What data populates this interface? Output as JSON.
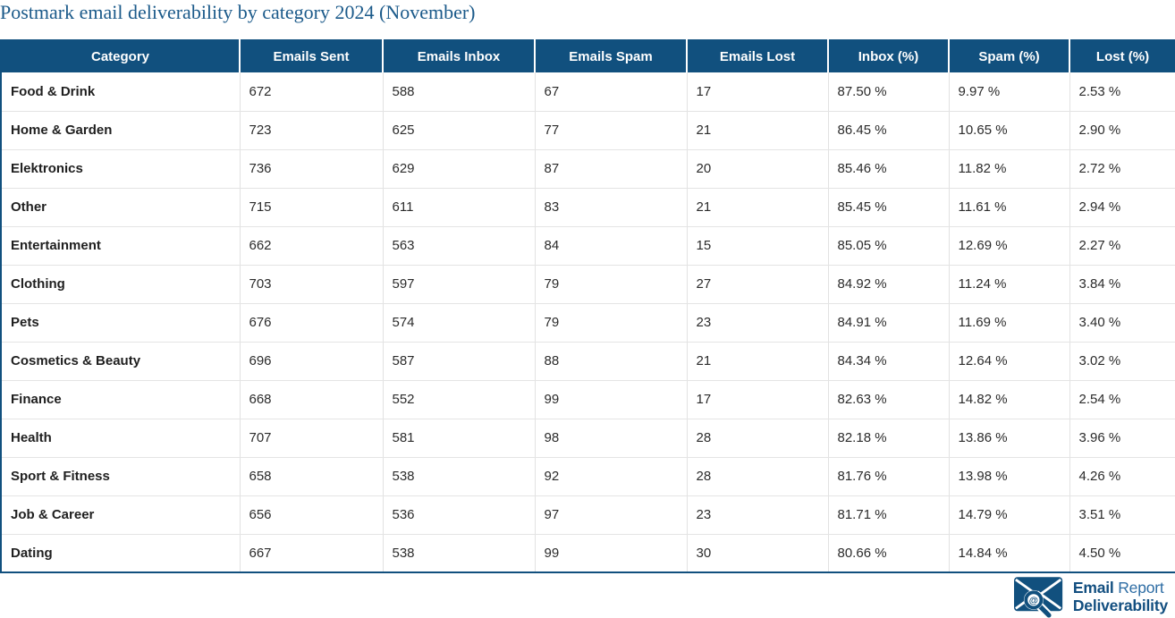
{
  "page": {
    "title": "Postmark email deliverability by category 2024 (November)"
  },
  "colors": {
    "header_bg": "#11507E",
    "title_text": "#1B5A8A",
    "grid_line": "#E2E2E2",
    "outer_border": "#11507E",
    "body_text": "#2B2B2B",
    "logo_dark_blue": "#134F80",
    "logo_light_blue": "#2E6DA4"
  },
  "logo": {
    "line1_bold": "Email",
    "line1_light": "Report",
    "line2": "Deliverability",
    "at_symbol": "@"
  },
  "chart_data": {
    "type": "table",
    "title": "Postmark email deliverability by category 2024 (November)",
    "columns": [
      "Category",
      "Emails Sent",
      "Emails Inbox",
      "Emails Spam",
      "Emails Lost",
      "Inbox (%)",
      "Spam (%)",
      "Lost (%)"
    ],
    "rows": [
      [
        "Food & Drink",
        "672",
        "588",
        "67",
        "17",
        "87.50 %",
        "9.97 %",
        "2.53 %"
      ],
      [
        "Home & Garden",
        "723",
        "625",
        "77",
        "21",
        "86.45 %",
        "10.65 %",
        "2.90 %"
      ],
      [
        "Elektronics",
        "736",
        "629",
        "87",
        "20",
        "85.46 %",
        "11.82 %",
        "2.72 %"
      ],
      [
        "Other",
        "715",
        "611",
        "83",
        "21",
        "85.45 %",
        "11.61 %",
        "2.94 %"
      ],
      [
        "Entertainment",
        "662",
        "563",
        "84",
        "15",
        "85.05 %",
        "12.69 %",
        "2.27 %"
      ],
      [
        "Clothing",
        "703",
        "597",
        "79",
        "27",
        "84.92 %",
        "11.24 %",
        "3.84 %"
      ],
      [
        "Pets",
        "676",
        "574",
        "79",
        "23",
        "84.91 %",
        "11.69 %",
        "3.40 %"
      ],
      [
        "Cosmetics & Beauty",
        "696",
        "587",
        "88",
        "21",
        "84.34 %",
        "12.64 %",
        "3.02 %"
      ],
      [
        "Finance",
        "668",
        "552",
        "99",
        "17",
        "82.63 %",
        "14.82 %",
        "2.54 %"
      ],
      [
        "Health",
        "707",
        "581",
        "98",
        "28",
        "82.18 %",
        "13.86 %",
        "3.96 %"
      ],
      [
        "Sport & Fitness",
        "658",
        "538",
        "92",
        "28",
        "81.76 %",
        "13.98 %",
        "4.26 %"
      ],
      [
        "Job & Career",
        "656",
        "536",
        "97",
        "23",
        "81.71 %",
        "14.79 %",
        "3.51 %"
      ],
      [
        "Dating",
        "667",
        "538",
        "99",
        "30",
        "80.66 %",
        "14.84 %",
        "4.50 %"
      ]
    ]
  }
}
